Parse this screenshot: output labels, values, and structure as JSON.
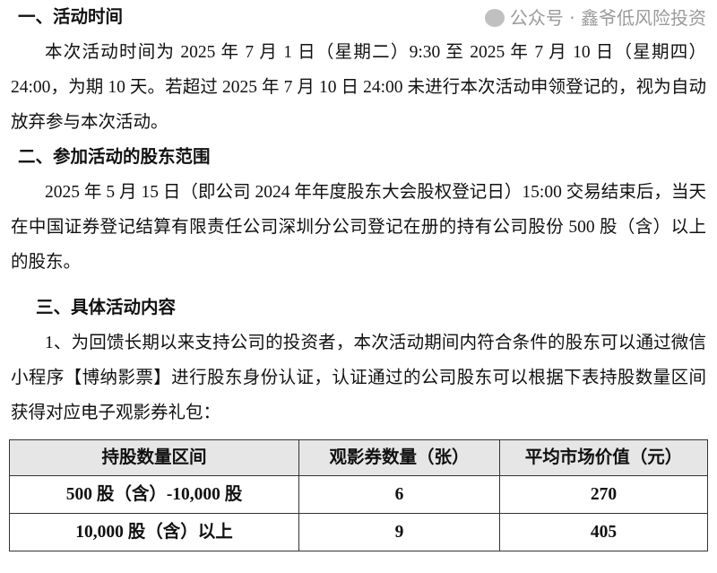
{
  "sections": [
    {
      "heading": "一、活动时间",
      "paragraphs": [
        "本次活动时间为 2025 年 7 月 1 日（星期二）9:30 至 2025 年 7 月 10 日（星期四）24:00，为期 10 天。若超过 2025 年 7 月 10 日 24:00 未进行本次活动申领登记的，视为自动放弃参与本次活动。"
      ]
    },
    {
      "heading": "二、参加活动的股东范围",
      "paragraphs": [
        "2025 年 5 月 15 日（即公司 2024 年年度股东大会股权登记日）15:00 交易结束后，当天在中国证券登记结算有限责任公司深圳分公司登记在册的持有公司股份 500 股（含）以上的股东。"
      ]
    },
    {
      "heading": "三、具体活动内容",
      "paragraphs": [
        "1、为回馈长期以来支持公司的投资者，本次活动期间内符合条件的股东可以通过微信小程序【博纳影票】进行股东身份认证，认证通过的公司股东可以根据下表持股数量区间获得对应电子观影券礼包："
      ]
    }
  ],
  "table": {
    "headers": [
      "持股数量区间",
      "观影券数量（张）",
      "平均市场价值（元）"
    ],
    "rows": [
      [
        "500 股（含）-10,000 股",
        "6",
        "270"
      ],
      [
        "10,000 股（含）以上",
        "9",
        "405"
      ]
    ]
  },
  "watermark": {
    "text": "公众号 · 鑫爷低风险投资",
    "icon": "wechat-icon"
  }
}
